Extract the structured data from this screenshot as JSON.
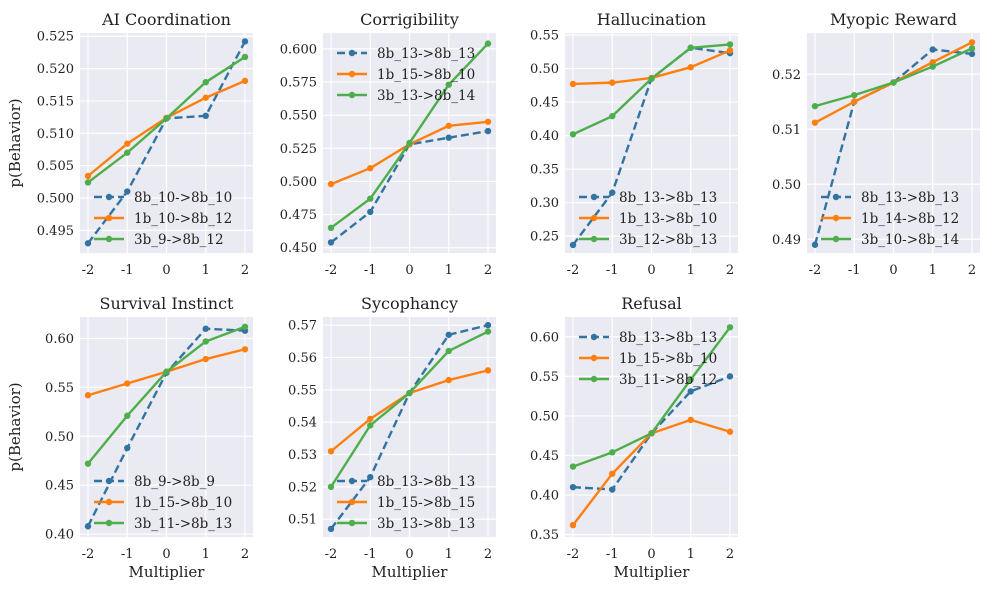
{
  "chart_data": [
    {
      "type": "line",
      "title": "AI Coordination",
      "xlabel": "",
      "ylabel": "p(Behavior)",
      "x": [
        -2,
        -1,
        0,
        1,
        2
      ],
      "xtick_labels": [
        "-2",
        "-1",
        "0",
        "1",
        "2"
      ],
      "ylim": [
        0.4915,
        0.5255
      ],
      "yticks": [
        0.495,
        0.5,
        0.505,
        0.51,
        0.515,
        0.52,
        0.525
      ],
      "ytick_labels": [
        "0.495",
        "0.500",
        "0.505",
        "0.510",
        "0.515",
        "0.520",
        "0.525"
      ],
      "legend_position": "lower-left",
      "series": [
        {
          "name": "8b_10->8b_10",
          "values": [
            0.493,
            0.501,
            0.5123,
            0.5127,
            0.5242
          ]
        },
        {
          "name": "1b_10->8b_12",
          "values": [
            0.5034,
            0.5084,
            0.5124,
            0.5155,
            0.5181
          ]
        },
        {
          "name": "3b_9->8b_12",
          "values": [
            0.5024,
            0.507,
            0.5123,
            0.5179,
            0.5218
          ]
        }
      ]
    },
    {
      "type": "line",
      "title": "Corrigibility",
      "xlabel": "",
      "ylabel": "",
      "x": [
        -2,
        -1,
        0,
        1,
        2
      ],
      "xtick_labels": [
        "-2",
        "-1",
        "0",
        "1",
        "2"
      ],
      "ylim": [
        0.446,
        0.612
      ],
      "yticks": [
        0.45,
        0.475,
        0.5,
        0.525,
        0.55,
        0.575,
        0.6
      ],
      "ytick_labels": [
        "0.450",
        "0.475",
        "0.500",
        "0.525",
        "0.550",
        "0.575",
        "0.600"
      ],
      "legend_position": "upper-left",
      "series": [
        {
          "name": "8b_13->8b_13",
          "values": [
            0.454,
            0.477,
            0.528,
            0.533,
            0.538
          ]
        },
        {
          "name": "1b_15->8b_10",
          "values": [
            0.498,
            0.51,
            0.528,
            0.542,
            0.545
          ]
        },
        {
          "name": "3b_13->8b_14",
          "values": [
            0.465,
            0.487,
            0.529,
            0.573,
            0.604
          ]
        }
      ]
    },
    {
      "type": "line",
      "title": "Hallucination",
      "xlabel": "",
      "ylabel": "",
      "x": [
        -2,
        -1,
        0,
        1,
        2
      ],
      "xtick_labels": [
        "-2",
        "-1",
        "0",
        "1",
        "2"
      ],
      "ylim": [
        0.225,
        0.553
      ],
      "yticks": [
        0.25,
        0.3,
        0.35,
        0.4,
        0.45,
        0.5,
        0.55
      ],
      "ytick_labels": [
        "0.25",
        "0.30",
        "0.35",
        "0.40",
        "0.45",
        "0.50",
        "0.55"
      ],
      "legend_position": "lower-left",
      "series": [
        {
          "name": "8b_13->8b_13",
          "values": [
            0.237,
            0.315,
            0.485,
            0.531,
            0.523
          ]
        },
        {
          "name": "1b_13->8b_10",
          "values": [
            0.477,
            0.479,
            0.486,
            0.502,
            0.527
          ]
        },
        {
          "name": "3b_12->8b_13",
          "values": [
            0.402,
            0.429,
            0.485,
            0.531,
            0.536
          ]
        }
      ]
    },
    {
      "type": "line",
      "title": "Myopic Reward",
      "xlabel": "",
      "ylabel": "",
      "x": [
        -2,
        -1,
        0,
        1,
        2
      ],
      "xtick_labels": [
        "-2",
        "-1",
        "0",
        "1",
        "2"
      ],
      "ylim": [
        0.4875,
        0.5275
      ],
      "yticks": [
        0.49,
        0.5,
        0.51,
        0.52
      ],
      "ytick_labels": [
        "0.49",
        "0.50",
        "0.51",
        "0.52"
      ],
      "legend_position": "lower-left",
      "series": [
        {
          "name": "8b_13->8b_13",
          "values": [
            0.489,
            0.515,
            0.5185,
            0.5245,
            0.5237
          ]
        },
        {
          "name": "1b_14->8b_12",
          "values": [
            0.5112,
            0.515,
            0.5185,
            0.5222,
            0.5258
          ]
        },
        {
          "name": "3b_10->8b_14",
          "values": [
            0.5142,
            0.5162,
            0.5185,
            0.5214,
            0.5247
          ]
        }
      ]
    },
    {
      "type": "line",
      "title": "Survival Instinct",
      "xlabel": "Multiplier",
      "ylabel": "p(Behavior)",
      "x": [
        -2,
        -1,
        0,
        1,
        2
      ],
      "xtick_labels": [
        "-2",
        "-1",
        "0",
        "1",
        "2"
      ],
      "ylim": [
        0.397,
        0.622
      ],
      "yticks": [
        0.4,
        0.45,
        0.5,
        0.55,
        0.6
      ],
      "ytick_labels": [
        "0.40",
        "0.45",
        "0.50",
        "0.55",
        "0.60"
      ],
      "legend_position": "lower-left",
      "series": [
        {
          "name": "8b_9->8b_9",
          "values": [
            0.408,
            0.488,
            0.565,
            0.61,
            0.608
          ]
        },
        {
          "name": "1b_15->8b_10",
          "values": [
            0.542,
            0.554,
            0.566,
            0.579,
            0.589
          ]
        },
        {
          "name": "3b_11->8b_13",
          "values": [
            0.472,
            0.521,
            0.566,
            0.597,
            0.612
          ]
        }
      ]
    },
    {
      "type": "line",
      "title": "Sycophancy",
      "xlabel": "Multiplier",
      "ylabel": "",
      "x": [
        -2,
        -1,
        0,
        1,
        2
      ],
      "xtick_labels": [
        "-2",
        "-1",
        "0",
        "1",
        "2"
      ],
      "ylim": [
        0.5045,
        0.5725
      ],
      "yticks": [
        0.51,
        0.52,
        0.53,
        0.54,
        0.55,
        0.56,
        0.57
      ],
      "ytick_labels": [
        "0.51",
        "0.52",
        "0.53",
        "0.54",
        "0.55",
        "0.56",
        "0.57"
      ],
      "legend_position": "lower-left",
      "series": [
        {
          "name": "8b_13->8b_13",
          "values": [
            0.507,
            0.523,
            0.549,
            0.567,
            0.57
          ]
        },
        {
          "name": "1b_15->8b_15",
          "values": [
            0.531,
            0.541,
            0.549,
            0.553,
            0.556
          ]
        },
        {
          "name": "3b_13->8b_13",
          "values": [
            0.52,
            0.539,
            0.549,
            0.562,
            0.568
          ]
        }
      ]
    },
    {
      "type": "line",
      "title": "Refusal",
      "xlabel": "Multiplier",
      "ylabel": "",
      "x": [
        -2,
        -1,
        0,
        1,
        2
      ],
      "xtick_labels": [
        "-2",
        "-1",
        "0",
        "1",
        "2"
      ],
      "ylim": [
        0.347,
        0.625
      ],
      "yticks": [
        0.35,
        0.4,
        0.45,
        0.5,
        0.55,
        0.6
      ],
      "ytick_labels": [
        "0.35",
        "0.40",
        "0.45",
        "0.50",
        "0.55",
        "0.60"
      ],
      "legend_position": "upper-left",
      "series": [
        {
          "name": "8b_13->8b_13",
          "values": [
            0.41,
            0.407,
            0.478,
            0.531,
            0.55
          ]
        },
        {
          "name": "1b_15->8b_10",
          "values": [
            0.362,
            0.427,
            0.478,
            0.495,
            0.48
          ]
        },
        {
          "name": "3b_11->8b_12",
          "values": [
            0.436,
            0.454,
            0.478,
            0.546,
            0.612
          ]
        }
      ]
    }
  ],
  "style": {
    "colors": [
      "#3274a1",
      "#ff7f0e",
      "#4eae4b"
    ],
    "dashes": [
      "dashed",
      "solid",
      "solid"
    ],
    "panel_background": "#eaeaf2",
    "grid_color": "#ffffff"
  }
}
